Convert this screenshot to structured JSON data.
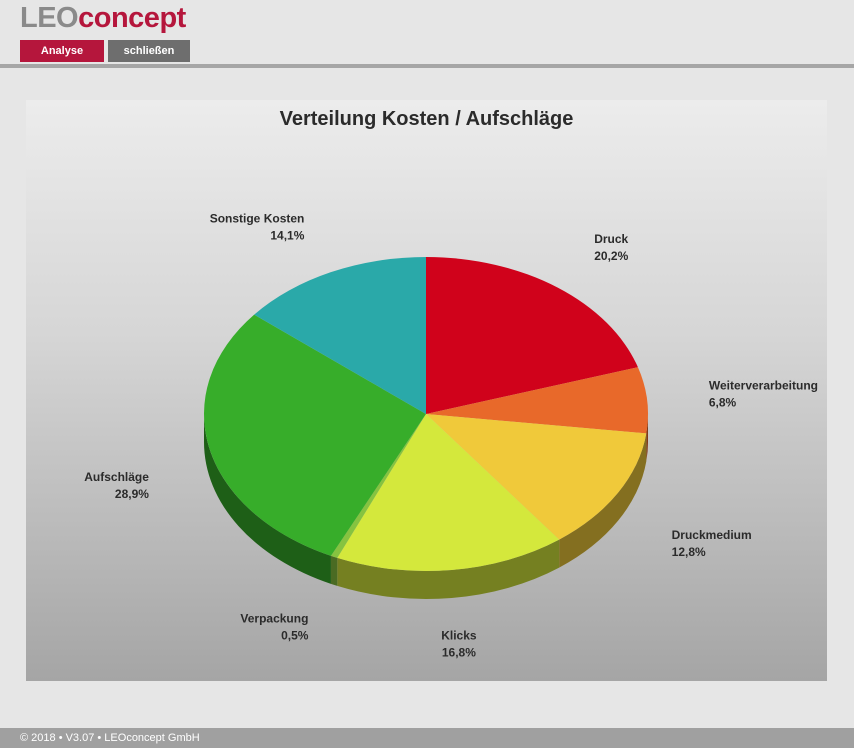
{
  "header": {
    "logo_part1": "LEO",
    "logo_part2": "concept",
    "analyse_label": "Analyse",
    "close_label": "schließen"
  },
  "footer": {
    "text": "© 2018 • V3.07 • LEOconcept GmbH"
  },
  "colors": {
    "brand": "#b5163c",
    "grey_button": "#6e6e6e"
  },
  "chart_data": {
    "type": "pie",
    "title": "Verteilung Kosten / Aufschläge",
    "legend": "none",
    "slices": [
      {
        "label": "Druck",
        "value": 20.2,
        "value_label": "20,2%",
        "color": "#d0021b"
      },
      {
        "label": "Weiterverarbeitung",
        "value": 6.8,
        "value_label": "6,8%",
        "color": "#e8692a"
      },
      {
        "label": "Druckmedium",
        "value": 12.8,
        "value_label": "12,8%",
        "color": "#f0c93a"
      },
      {
        "label": "Klicks",
        "value": 16.8,
        "value_label": "16,8%",
        "color": "#d4e83c"
      },
      {
        "label": "Verpackung",
        "value": 0.5,
        "value_label": "0,5%",
        "color": "#86c340"
      },
      {
        "label": "Aufschläge",
        "value": 28.9,
        "value_label": "28,9%",
        "color": "#37ad2a"
      },
      {
        "label": "Sonstige Kosten",
        "value": 14.1,
        "value_label": "14,1%",
        "color": "#2aa9a9"
      }
    ]
  }
}
